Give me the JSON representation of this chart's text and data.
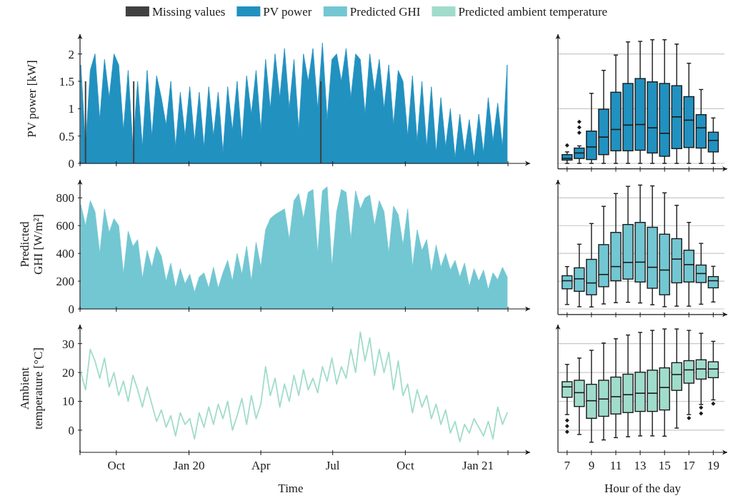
{
  "chart_data": [
    {
      "type": "area",
      "ylabel": "PV power [kW]",
      "legend": "top",
      "tick_labels": "y",
      "xlim": [
        "2019-08-16",
        "2021-03-08"
      ],
      "xticks": [
        {
          "value": "2019-08-16",
          "label": null
        },
        {
          "value": "2019-10-01",
          "label": null
        },
        {
          "value": "2020-01-01",
          "label": null
        },
        {
          "value": "2020-04-01",
          "label": null
        },
        {
          "value": "2020-07-01",
          "label": null
        },
        {
          "value": "2020-10-01",
          "label": null
        },
        {
          "value": "2021-01-01",
          "label": null
        },
        {
          "value": "2021-02-08",
          "label": null
        }
      ],
      "ylim": [
        0,
        2.36
      ],
      "yticks": [
        0,
        0.5,
        1,
        1.5,
        2
      ],
      "series": [
        {
          "name": "Missing values",
          "type": "bar",
          "color": "#404040",
          "x": [
            "2019-08-23",
            "2019-10-23",
            "2020-06-16"
          ],
          "values": [
            1.5,
            1.5,
            1.5
          ]
        },
        {
          "name": "PV power",
          "color": "#2191c0",
          "x": [
            "2019-08-17",
            "2019-08-23",
            "2019-08-29",
            "2019-09-04",
            "2019-09-10",
            "2019-09-16",
            "2019-09-22",
            "2019-09-28",
            "2019-10-04",
            "2019-10-10",
            "2019-10-16",
            "2019-10-22",
            "2019-10-28",
            "2019-11-03",
            "2019-11-09",
            "2019-11-15",
            "2019-11-21",
            "2019-11-27",
            "2019-12-03",
            "2019-12-09",
            "2019-12-15",
            "2019-12-21",
            "2019-12-27",
            "2020-01-02",
            "2020-01-08",
            "2020-01-14",
            "2020-01-20",
            "2020-01-26",
            "2020-02-01",
            "2020-02-07",
            "2020-02-13",
            "2020-02-19",
            "2020-02-25",
            "2020-03-02",
            "2020-03-08",
            "2020-03-14",
            "2020-03-20",
            "2020-03-26",
            "2020-04-01",
            "2020-04-07",
            "2020-04-13",
            "2020-04-19",
            "2020-04-25",
            "2020-05-01",
            "2020-05-07",
            "2020-05-13",
            "2020-05-19",
            "2020-05-25",
            "2020-05-31",
            "2020-06-06",
            "2020-06-12",
            "2020-06-18",
            "2020-06-24",
            "2020-06-30",
            "2020-07-06",
            "2020-07-12",
            "2020-07-18",
            "2020-07-24",
            "2020-07-30",
            "2020-08-05",
            "2020-08-11",
            "2020-08-17",
            "2020-08-23",
            "2020-08-29",
            "2020-09-04",
            "2020-09-10",
            "2020-09-16",
            "2020-09-22",
            "2020-09-28",
            "2020-10-04",
            "2020-10-10",
            "2020-10-16",
            "2020-10-22",
            "2020-10-28",
            "2020-11-03",
            "2020-11-09",
            "2020-11-15",
            "2020-11-21",
            "2020-11-27",
            "2020-12-03",
            "2020-12-09",
            "2020-12-15",
            "2020-12-21",
            "2020-12-27",
            "2021-01-02",
            "2021-01-08",
            "2021-01-14",
            "2021-01-20",
            "2021-01-26",
            "2021-02-01",
            "2021-02-07"
          ],
          "values": [
            1.8,
            0.3,
            1.7,
            2.0,
            0.8,
            1.9,
            1.2,
            2.0,
            1.8,
            0.6,
            1.7,
            0.3,
            1.5,
            0.3,
            1.7,
            0.5,
            1.6,
            1.2,
            0.7,
            1.5,
            0.3,
            1.3,
            0.5,
            1.4,
            0.4,
            1.3,
            0.3,
            1.4,
            0.5,
            1.3,
            0.2,
            1.4,
            0.6,
            1.5,
            0.4,
            1.6,
            0.9,
            1.7,
            0.6,
            1.9,
            1.0,
            2.0,
            1.2,
            2.1,
            1.0,
            1.9,
            0.6,
            2.0,
            1.5,
            2.1,
            1.0,
            2.2,
            0.8,
            1.9,
            2.0,
            1.5,
            2.1,
            1.2,
            2.0,
            1.9,
            0.9,
            2.0,
            1.3,
            1.9,
            1.0,
            1.8,
            0.7,
            1.7,
            1.5,
            0.5,
            1.6,
            0.4,
            1.5,
            0.3,
            1.4,
            0.2,
            1.2,
            0.3,
            1.0,
            0.1,
            0.9,
            0.2,
            0.8,
            0.1,
            0.9,
            0.2,
            1.2,
            0.4,
            1.1,
            0.3,
            1.8
          ]
        }
      ]
    },
    {
      "type": "box",
      "color": "#2191c0",
      "tick_labels": false,
      "grid": "y",
      "categories": [
        "7",
        null,
        "9",
        null,
        "11",
        null,
        "13",
        null,
        "15",
        null,
        "17",
        null,
        "19"
      ],
      "ylim": [
        -0.1,
        2.36
      ],
      "yticks": [
        0,
        1,
        2
      ],
      "boxes": [
        {
          "low": 0,
          "q1": 0.06,
          "median": 0.09,
          "q3": 0.16,
          "high": 0.21,
          "outliers": [
            0.33
          ]
        },
        {
          "low": 0,
          "q1": 0.09,
          "median": 0.19,
          "q3": 0.28,
          "high": 0.32,
          "outliers": [
            0.56,
            0.66,
            0.76
          ]
        },
        {
          "low": 0,
          "q1": 0.07,
          "median": 0.3,
          "q3": 0.59,
          "high": 1.28
        },
        {
          "low": 0,
          "q1": 0.16,
          "median": 0.48,
          "q3": 0.99,
          "high": 1.7
        },
        {
          "low": 0,
          "q1": 0.23,
          "median": 0.62,
          "q3": 1.3,
          "high": 1.98
        },
        {
          "low": 0,
          "q1": 0.23,
          "median": 0.7,
          "q3": 1.46,
          "high": 2.22
        },
        {
          "low": 0,
          "q1": 0.24,
          "median": 0.71,
          "q3": 1.55,
          "high": 2.23
        },
        {
          "low": 0,
          "q1": 0.19,
          "median": 0.65,
          "q3": 1.49,
          "high": 2.26
        },
        {
          "low": 0,
          "q1": 0.13,
          "median": 0.55,
          "q3": 1.46,
          "high": 2.26
        },
        {
          "low": 0,
          "q1": 0.27,
          "median": 0.85,
          "q3": 1.42,
          "high": 2.18
        },
        {
          "low": 0,
          "q1": 0.29,
          "median": 0.79,
          "q3": 1.22,
          "high": 1.83
        },
        {
          "low": 0,
          "q1": 0.28,
          "median": 0.65,
          "q3": 0.89,
          "high": 1.35
        },
        {
          "low": 0,
          "q1": 0.21,
          "median": 0.42,
          "q3": 0.57,
          "high": 0.83
        }
      ]
    },
    {
      "type": "area",
      "ylabel": "Predicted GHI [W/m²]",
      "legend": "top",
      "tick_labels": "y",
      "xlim": [
        "2019-08-16",
        "2021-03-08"
      ],
      "xticks": [
        {
          "value": "2019-08-16",
          "label": null
        },
        {
          "value": "2019-10-01",
          "label": null
        },
        {
          "value": "2020-01-01",
          "label": null
        },
        {
          "value": "2020-04-01",
          "label": null
        },
        {
          "value": "2020-07-01",
          "label": null
        },
        {
          "value": "2020-10-01",
          "label": null
        },
        {
          "value": "2021-01-01",
          "label": null
        },
        {
          "value": "2021-02-08",
          "label": null
        }
      ],
      "ylim": [
        0,
        930
      ],
      "yticks": [
        0,
        200,
        400,
        600,
        800
      ],
      "series": [
        {
          "name": "Predicted GHI",
          "color": "#72c7d2",
          "x": [
            "2019-08-17",
            "2019-08-23",
            "2019-08-29",
            "2019-09-04",
            "2019-09-10",
            "2019-09-16",
            "2019-09-22",
            "2019-09-28",
            "2019-10-04",
            "2019-10-10",
            "2019-10-16",
            "2019-10-22",
            "2019-10-28",
            "2019-11-03",
            "2019-11-09",
            "2019-11-15",
            "2019-11-21",
            "2019-11-27",
            "2019-12-03",
            "2019-12-09",
            "2019-12-15",
            "2019-12-21",
            "2019-12-27",
            "2020-01-02",
            "2020-01-08",
            "2020-01-14",
            "2020-01-20",
            "2020-01-26",
            "2020-02-01",
            "2020-02-07",
            "2020-02-13",
            "2020-02-19",
            "2020-02-25",
            "2020-03-02",
            "2020-03-08",
            "2020-03-14",
            "2020-03-20",
            "2020-03-26",
            "2020-04-01",
            "2020-04-07",
            "2020-04-13",
            "2020-04-19",
            "2020-04-25",
            "2020-05-01",
            "2020-05-07",
            "2020-05-13",
            "2020-05-19",
            "2020-05-25",
            "2020-05-31",
            "2020-06-06",
            "2020-06-12",
            "2020-06-18",
            "2020-06-24",
            "2020-06-30",
            "2020-07-06",
            "2020-07-12",
            "2020-07-18",
            "2020-07-24",
            "2020-07-30",
            "2020-08-05",
            "2020-08-11",
            "2020-08-17",
            "2020-08-23",
            "2020-08-29",
            "2020-09-04",
            "2020-09-10",
            "2020-09-16",
            "2020-09-22",
            "2020-09-28",
            "2020-10-04",
            "2020-10-10",
            "2020-10-16",
            "2020-10-22",
            "2020-10-28",
            "2020-11-03",
            "2020-11-09",
            "2020-11-15",
            "2020-11-21",
            "2020-11-27",
            "2020-12-03",
            "2020-12-09",
            "2020-12-15",
            "2020-12-21",
            "2020-12-27",
            "2021-01-02",
            "2021-01-08",
            "2021-01-14",
            "2021-01-20",
            "2021-01-26",
            "2021-02-01",
            "2021-02-07"
          ],
          "values": [
            750,
            600,
            780,
            700,
            400,
            720,
            550,
            650,
            600,
            250,
            560,
            450,
            500,
            220,
            420,
            300,
            450,
            380,
            200,
            330,
            150,
            290,
            180,
            250,
            120,
            230,
            260,
            150,
            300,
            150,
            260,
            350,
            200,
            400,
            250,
            450,
            200,
            480,
            300,
            570,
            650,
            680,
            700,
            720,
            500,
            780,
            830,
            650,
            840,
            860,
            400,
            850,
            880,
            300,
            700,
            860,
            840,
            500,
            850,
            720,
            800,
            820,
            600,
            780,
            700,
            400,
            740,
            680,
            460,
            720,
            300,
            570,
            420,
            500,
            260,
            460,
            300,
            400,
            280,
            350,
            230,
            330,
            160,
            290,
            200,
            280,
            140,
            260,
            210,
            300,
            230
          ]
        }
      ]
    },
    {
      "type": "box",
      "color": "#72c7d2",
      "tick_labels": false,
      "grid": "y",
      "categories": [
        "7",
        null,
        "9",
        null,
        "11",
        null,
        "13",
        null,
        "15",
        null,
        "17",
        null,
        "19"
      ],
      "ylim": [
        -40,
        930
      ],
      "yticks": [
        0,
        200,
        400,
        600,
        800
      ],
      "boxes": [
        {
          "low": 32,
          "q1": 145,
          "median": 203,
          "q3": 239,
          "high": 305
        },
        {
          "low": 16,
          "q1": 127,
          "median": 217,
          "q3": 296,
          "high": 466
        },
        {
          "low": 14,
          "q1": 102,
          "median": 187,
          "q3": 357,
          "high": 615
        },
        {
          "low": 36,
          "q1": 160,
          "median": 248,
          "q3": 463,
          "high": 739
        },
        {
          "low": 45,
          "q1": 203,
          "median": 305,
          "q3": 551,
          "high": 831
        },
        {
          "low": 48,
          "q1": 215,
          "median": 335,
          "q3": 608,
          "high": 883
        },
        {
          "low": 43,
          "q1": 194,
          "median": 337,
          "q3": 623,
          "high": 892
        },
        {
          "low": 30,
          "q1": 149,
          "median": 300,
          "q3": 588,
          "high": 886
        },
        {
          "low": 16,
          "q1": 102,
          "median": 280,
          "q3": 538,
          "high": 836
        },
        {
          "low": 20,
          "q1": 188,
          "median": 359,
          "q3": 506,
          "high": 746
        },
        {
          "low": 20,
          "q1": 194,
          "median": 319,
          "q3": 423,
          "high": 623
        },
        {
          "low": 34,
          "q1": 190,
          "median": 255,
          "q3": 316,
          "high": 472
        },
        {
          "low": 50,
          "q1": 152,
          "median": 203,
          "q3": 233,
          "high": 307
        }
      ]
    },
    {
      "type": "line",
      "ylabel": "Ambient temperature [°C]",
      "xlabel": "Time",
      "legend": "top",
      "xlim": [
        "2019-08-16",
        "2021-03-08"
      ],
      "xticks": [
        {
          "value": "2019-08-16",
          "label": null
        },
        {
          "value": "2019-10-01",
          "label": "Oct"
        },
        {
          "value": "2020-01-01",
          "label": "Jan 20"
        },
        {
          "value": "2020-04-01",
          "label": "Apr"
        },
        {
          "value": "2020-07-01",
          "label": "Jul"
        },
        {
          "value": "2020-10-01",
          "label": "Oct"
        },
        {
          "value": "2021-01-01",
          "label": "Jan 21"
        },
        {
          "value": "2021-02-08",
          "label": null
        }
      ],
      "ylim": [
        -7.7,
        36.6
      ],
      "yticks": [
        0,
        10,
        20,
        30
      ],
      "series": [
        {
          "name": "Predicted ambient temperature",
          "color": "#a0dccb",
          "x": [
            "2019-08-17",
            "2019-08-23",
            "2019-08-29",
            "2019-09-04",
            "2019-09-10",
            "2019-09-16",
            "2019-09-22",
            "2019-09-28",
            "2019-10-04",
            "2019-10-10",
            "2019-10-16",
            "2019-10-22",
            "2019-10-28",
            "2019-11-03",
            "2019-11-09",
            "2019-11-15",
            "2019-11-21",
            "2019-11-27",
            "2019-12-03",
            "2019-12-09",
            "2019-12-15",
            "2019-12-21",
            "2019-12-27",
            "2020-01-02",
            "2020-01-08",
            "2020-01-14",
            "2020-01-20",
            "2020-01-26",
            "2020-02-01",
            "2020-02-07",
            "2020-02-13",
            "2020-02-19",
            "2020-02-25",
            "2020-03-02",
            "2020-03-08",
            "2020-03-14",
            "2020-03-20",
            "2020-03-26",
            "2020-04-01",
            "2020-04-07",
            "2020-04-13",
            "2020-04-19",
            "2020-04-25",
            "2020-05-01",
            "2020-05-07",
            "2020-05-13",
            "2020-05-19",
            "2020-05-25",
            "2020-05-31",
            "2020-06-06",
            "2020-06-12",
            "2020-06-18",
            "2020-06-24",
            "2020-06-30",
            "2020-07-06",
            "2020-07-12",
            "2020-07-18",
            "2020-07-24",
            "2020-07-30",
            "2020-08-05",
            "2020-08-11",
            "2020-08-17",
            "2020-08-23",
            "2020-08-29",
            "2020-09-04",
            "2020-09-10",
            "2020-09-16",
            "2020-09-22",
            "2020-09-28",
            "2020-10-04",
            "2020-10-10",
            "2020-10-16",
            "2020-10-22",
            "2020-10-28",
            "2020-11-03",
            "2020-11-09",
            "2020-11-15",
            "2020-11-21",
            "2020-11-27",
            "2020-12-03",
            "2020-12-09",
            "2020-12-15",
            "2020-12-21",
            "2020-12-27",
            "2021-01-02",
            "2021-01-08",
            "2021-01-14",
            "2021-01-20",
            "2021-01-26",
            "2021-02-01",
            "2021-02-07"
          ],
          "values": [
            20,
            14,
            28,
            24,
            18,
            25,
            15,
            20,
            12,
            17,
            10,
            19,
            14,
            8,
            15,
            9,
            3,
            7,
            1,
            5,
            -2,
            6,
            2,
            4,
            -3,
            6,
            1,
            8,
            2,
            9,
            4,
            10,
            0,
            5,
            11,
            2,
            12,
            4,
            9,
            22,
            12,
            18,
            8,
            16,
            10,
            19,
            12,
            21,
            14,
            18,
            13,
            22,
            17,
            25,
            16,
            22,
            18,
            28,
            20,
            34,
            24,
            32,
            19,
            28,
            20,
            27,
            14,
            24,
            12,
            16,
            6,
            14,
            8,
            12,
            4,
            9,
            2,
            7,
            -1,
            3,
            -4,
            2,
            -1,
            4,
            1,
            -2,
            3,
            -3,
            8,
            2,
            6
          ]
        }
      ]
    },
    {
      "type": "box",
      "color": "#a0dccb",
      "tick_labels": "x",
      "grid": "y",
      "xlabel": "Hour of the day",
      "categories": [
        "7",
        null,
        "9",
        null,
        "11",
        null,
        "13",
        null,
        "15",
        null,
        "17",
        null,
        "19"
      ],
      "ylim": [
        -7.7,
        36.6
      ],
      "yticks": [
        0,
        10,
        20,
        30
      ],
      "boxes": [
        {
          "low": 5.4,
          "q1": 11.4,
          "median": 15.0,
          "q3": 16.8,
          "high": 22.8,
          "outliers": [
            3.4,
            1.4,
            -0.6
          ]
        },
        {
          "low": -1.5,
          "q1": 8.2,
          "median": 13.0,
          "q3": 17.3,
          "high": 25.0
        },
        {
          "low": -4.2,
          "q1": 4.1,
          "median": 10.2,
          "q3": 15.9,
          "high": 27.7
        },
        {
          "low": -3.4,
          "q1": 4.8,
          "median": 10.8,
          "q3": 17.3,
          "high": 30.2
        },
        {
          "low": -2.6,
          "q1": 5.6,
          "median": 11.6,
          "q3": 18.4,
          "high": 31.7
        },
        {
          "low": -2.3,
          "q1": 6.1,
          "median": 12.3,
          "q3": 19.4,
          "high": 33.0
        },
        {
          "low": -2.0,
          "q1": 6.5,
          "median": 12.8,
          "q3": 20.1,
          "high": 33.9
        },
        {
          "low": -2.0,
          "q1": 6.5,
          "median": 12.8,
          "q3": 20.8,
          "high": 34.6
        },
        {
          "low": -2.1,
          "q1": 7.0,
          "median": 14.8,
          "q3": 21.6,
          "high": 35.1
        },
        {
          "low": 0.7,
          "q1": 13.8,
          "median": 19.3,
          "q3": 23.4,
          "high": 35.1
        },
        {
          "low": 5.4,
          "q1": 16.3,
          "median": 20.9,
          "q3": 24.1,
          "high": 34.6,
          "outliers": [
            4.2
          ]
        },
        {
          "low": 8.9,
          "q1": 17.7,
          "median": 21.2,
          "q3": 24.4,
          "high": 33.6,
          "outliers": [
            7.8,
            5.8
          ]
        },
        {
          "low": 10.5,
          "q1": 18.2,
          "median": 21.2,
          "q3": 23.7,
          "high": 30.8,
          "outliers": [
            9.2
          ]
        }
      ]
    }
  ]
}
